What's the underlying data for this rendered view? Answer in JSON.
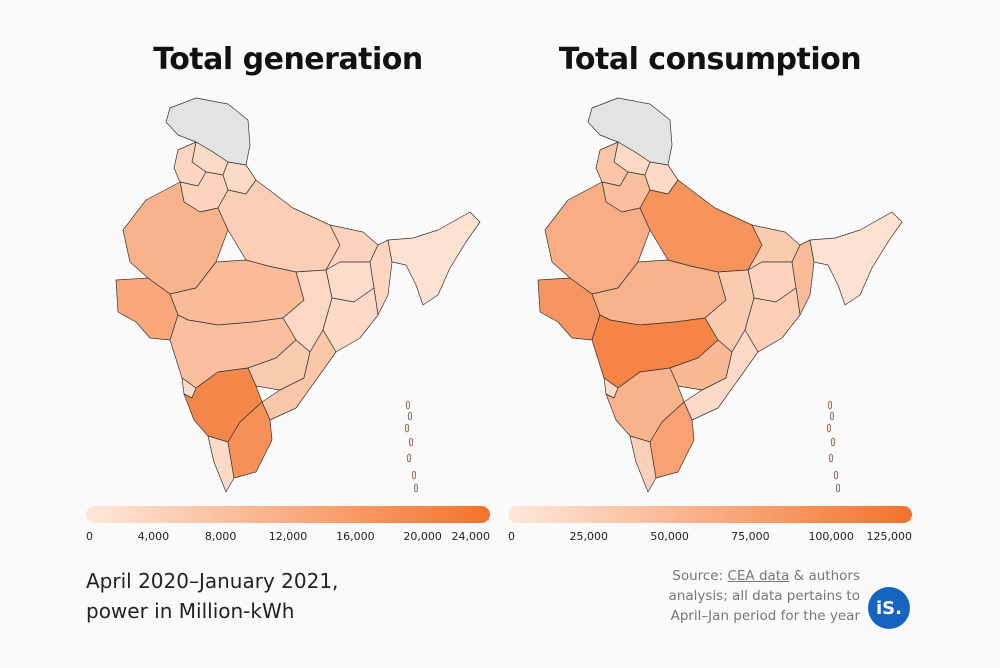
{
  "colors": {
    "scale_low": "#fde8dc",
    "scale_high": "#f5722b",
    "no_data": "#e3e3e3",
    "border": "#333333",
    "brand": "#1565c0"
  },
  "maps": [
    {
      "title": "Total generation",
      "legend": {
        "ticks": [
          "0",
          "4,000",
          "8,000",
          "12,000",
          "16,000",
          "20,000",
          "24,000"
        ],
        "tick_values": [
          0,
          4000,
          8000,
          12000,
          16000,
          20000,
          24000
        ],
        "min": 0,
        "max": 24000
      },
      "regions": [
        {
          "name": "Jammu & Kashmir",
          "level": "no-data"
        },
        {
          "name": "Himachal Pradesh",
          "level": 0.12
        },
        {
          "name": "Punjab",
          "level": 0.16
        },
        {
          "name": "Haryana",
          "level": 0.18
        },
        {
          "name": "Uttarakhand",
          "level": 0.12
        },
        {
          "name": "Rajasthan",
          "level": 0.45
        },
        {
          "name": "Uttar Pradesh",
          "level": 0.22
        },
        {
          "name": "Bihar",
          "level": 0.18
        },
        {
          "name": "Gujarat",
          "level": 0.55
        },
        {
          "name": "Madhya Pradesh",
          "level": 0.38
        },
        {
          "name": "Jharkhand",
          "level": 0.1
        },
        {
          "name": "West Bengal",
          "level": 0.15
        },
        {
          "name": "Chhattisgarh",
          "level": 0.14
        },
        {
          "name": "Odisha",
          "level": 0.12
        },
        {
          "name": "Maharashtra",
          "level": 0.35
        },
        {
          "name": "Telangana",
          "level": 0.25
        },
        {
          "name": "Andhra Pradesh",
          "level": 0.28
        },
        {
          "name": "Goa",
          "level": 0.1
        },
        {
          "name": "Karnataka",
          "level": 0.82
        },
        {
          "name": "Kerala",
          "level": 0.12
        },
        {
          "name": "Tamil Nadu",
          "level": 0.75
        },
        {
          "name": "Northeast",
          "level": 0.06
        }
      ]
    },
    {
      "title": "Total consumption",
      "legend": {
        "ticks": [
          "0",
          "25,000",
          "50,000",
          "75,000",
          "100,000",
          "125,000"
        ],
        "tick_values": [
          0,
          25000,
          50000,
          75000,
          100000,
          125000
        ],
        "min": 0,
        "max": 125000
      },
      "regions": [
        {
          "name": "Jammu & Kashmir",
          "level": "no-data"
        },
        {
          "name": "Himachal Pradesh",
          "level": 0.12
        },
        {
          "name": "Punjab",
          "level": 0.3
        },
        {
          "name": "Haryana",
          "level": 0.35
        },
        {
          "name": "Uttarakhand",
          "level": 0.12
        },
        {
          "name": "Rajasthan",
          "level": 0.5
        },
        {
          "name": "Uttar Pradesh",
          "level": 0.72
        },
        {
          "name": "Bihar",
          "level": 0.25
        },
        {
          "name": "Gujarat",
          "level": 0.7
        },
        {
          "name": "Madhya Pradesh",
          "level": 0.45
        },
        {
          "name": "Jharkhand",
          "level": 0.18
        },
        {
          "name": "West Bengal",
          "level": 0.38
        },
        {
          "name": "Chhattisgarh",
          "level": 0.25
        },
        {
          "name": "Odisha",
          "level": 0.22
        },
        {
          "name": "Maharashtra",
          "level": 0.85
        },
        {
          "name": "Telangana",
          "level": 0.4
        },
        {
          "name": "Andhra Pradesh",
          "level": 0.12
        },
        {
          "name": "Goa",
          "level": 0.1
        },
        {
          "name": "Karnataka",
          "level": 0.45
        },
        {
          "name": "Kerala",
          "level": 0.2
        },
        {
          "name": "Tamil Nadu",
          "level": 0.6
        },
        {
          "name": "Northeast",
          "level": 0.06
        }
      ]
    }
  ],
  "footer": {
    "period_line1": "April 2020–January 2021,",
    "period_line2": "power in Million-kWh",
    "source_prefix": "Source: ",
    "source_link": "CEA data",
    "source_suffix": " & authors",
    "source_line2": "analysis; all data pertains to",
    "source_line3": "April–Jan period for the year",
    "brand_label": "iS."
  }
}
